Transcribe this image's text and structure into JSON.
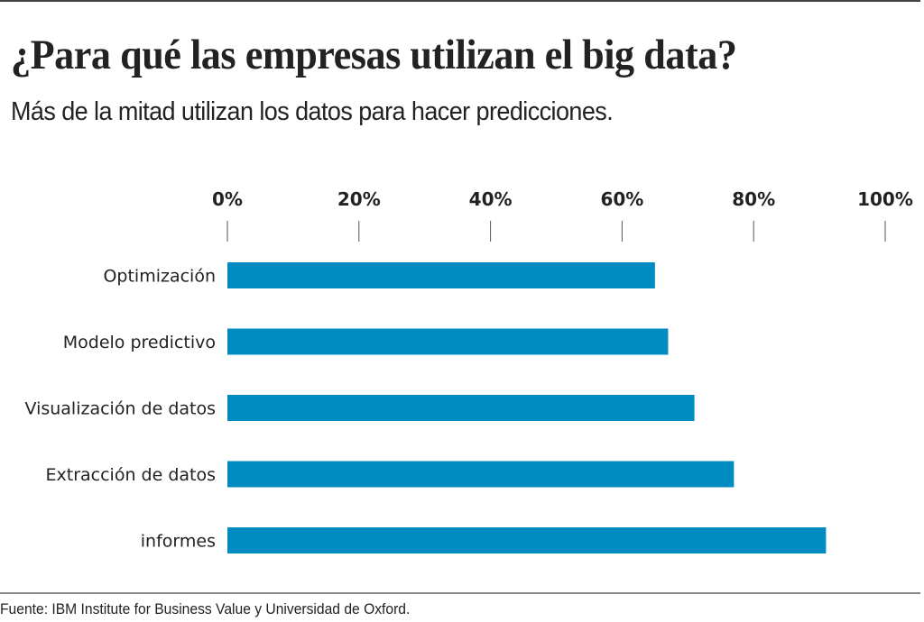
{
  "header": {
    "title": "¿Para qué las empresas utilizan el big data?",
    "subtitle": "Más de la mitad utilizan los datos para hacer predicciones."
  },
  "footer": {
    "source": "Fuente: IBM Institute for Business Value y Universidad de Oxford."
  },
  "colors": {
    "bar": "#008cc0",
    "tick": "#555555",
    "text": "#222222"
  },
  "chart_data": {
    "type": "bar",
    "orientation": "horizontal",
    "title": "¿Para qué las empresas utilizan el big data?",
    "subtitle": "Más de la mitad utilizan los datos para hacer predicciones.",
    "xlabel": "",
    "ylabel": "",
    "categories": [
      "Optimización",
      "Modelo predictivo",
      "Visualización de datos",
      "Extracción de datos",
      "informes"
    ],
    "category_labels_display": [
      "Optimización",
      "Modelo predictivo",
      "Visualización de datos",
      "Extraccióndedatos",
      "informes"
    ],
    "values": [
      65,
      67,
      71,
      77,
      91
    ],
    "unit": "%",
    "xlim": [
      0,
      100
    ],
    "x_ticks": [
      0,
      20,
      40,
      60,
      80,
      100
    ],
    "x_tick_labels": [
      "0%",
      "20%",
      "40%",
      "60%",
      "80%",
      "100%"
    ],
    "axis_position": "top",
    "grid": false,
    "legend": "none"
  }
}
